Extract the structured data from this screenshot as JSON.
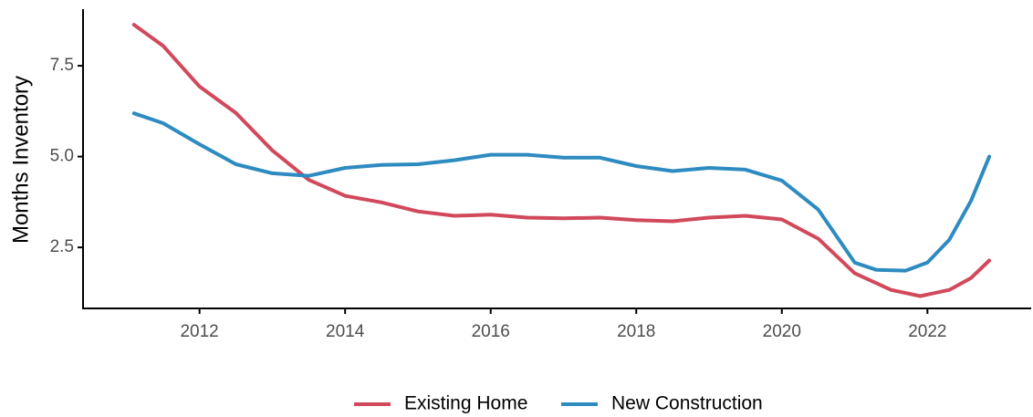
{
  "chart_data": {
    "type": "line",
    "y_label": "Months Inventory",
    "xlim": [
      2010.4,
      2023.45
    ],
    "xticks": [
      2012,
      2014,
      2016,
      2018,
      2020,
      2022
    ],
    "ylim": [
      0.82,
      9.06
    ],
    "yticks": [
      2.5,
      {
        "value": 5,
        "label": "5.0"
      },
      7.5
    ],
    "legend": "bottom",
    "series": [
      {
        "name": "Existing Home",
        "color": "#d1495b",
        "x": [
          2011.1,
          2011.5,
          2012,
          2012.5,
          2013,
          2013.5,
          2014,
          2014.5,
          2015,
          2015.5,
          2016,
          2016.5,
          2017,
          2017.5,
          2018,
          2018.5,
          2019,
          2019.5,
          2020,
          2020.5,
          2021,
          2021.5,
          2021.9,
          2022.3,
          2022.6,
          2022.85
        ],
        "values": [
          8.63,
          8.05,
          6.93,
          6.2,
          5.17,
          4.36,
          3.92,
          3.74,
          3.49,
          3.37,
          3.4,
          3.32,
          3.3,
          3.32,
          3.25,
          3.22,
          3.32,
          3.37,
          3.27,
          2.74,
          1.79,
          1.33,
          1.16,
          1.33,
          1.66,
          2.14
        ]
      },
      {
        "name": "New Construction",
        "color": "#2e8bc0",
        "x": [
          2011.1,
          2011.5,
          2012,
          2012.5,
          2013,
          2013.5,
          2014,
          2014.5,
          2015,
          2015.5,
          2016,
          2016.5,
          2017,
          2017.5,
          2018,
          2018.5,
          2019,
          2019.5,
          2020,
          2020.5,
          2021,
          2021.3,
          2021.7,
          2022,
          2022.3,
          2022.6,
          2022.85
        ],
        "values": [
          6.19,
          5.92,
          5.34,
          4.79,
          4.54,
          4.47,
          4.69,
          4.77,
          4.79,
          4.9,
          5.05,
          5.05,
          4.97,
          4.97,
          4.74,
          4.6,
          4.69,
          4.64,
          4.34,
          3.54,
          2.08,
          1.88,
          1.86,
          2.08,
          2.71,
          3.79,
          5.0
        ]
      }
    ]
  }
}
